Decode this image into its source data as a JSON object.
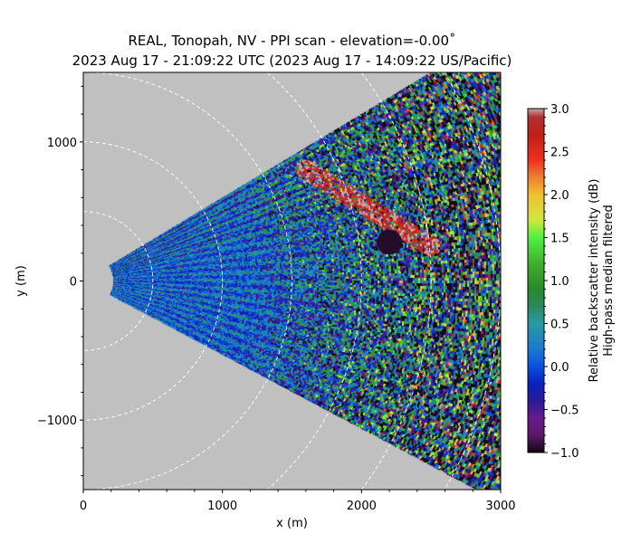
{
  "title": {
    "line1": "REAL, Tonopah, NV - PPI scan - elevation=-0.00˚",
    "line2": "2023 Aug 17 - 21:09:22 UTC (2023 Aug 17 - 14:09:22 US/Pacific)"
  },
  "chart_data": {
    "type": "heatmap",
    "subtype": "polar PPI sector scan",
    "xlabel": "x (m)",
    "ylabel": "y (m)",
    "xlim": [
      0,
      3000
    ],
    "ylim": [
      -1500,
      1500
    ],
    "xticks": [
      0,
      1000,
      2000,
      3000
    ],
    "xtick_labels": [
      "0",
      "1000",
      "2000",
      "3000"
    ],
    "yticks": [
      -1000,
      0,
      1000
    ],
    "ytick_labels": [
      "−1000",
      "0",
      "1000"
    ],
    "range_rings_m": [
      500,
      1000,
      1500,
      2000,
      2500,
      3000,
      3500
    ],
    "sector_azimuth_deg": [
      -28,
      31
    ],
    "min_range_m": 215,
    "background_color": "#c0c0c0",
    "colorbar": {
      "label_line1": "Relative backscatter intensity (dB)",
      "label_line2": "High-pass median filtered",
      "vmin": -1.0,
      "vmax": 3.0,
      "ticks": [
        -1.0,
        -0.5,
        0.0,
        0.5,
        1.0,
        1.5,
        2.0,
        2.5,
        3.0
      ],
      "tick_labels": [
        "−1.0",
        "−0.5",
        "0.0",
        "0.5",
        "1.0",
        "1.5",
        "2.0",
        "2.5",
        "3.0"
      ],
      "colormap_stops": [
        [
          -1.0,
          "#120812"
        ],
        [
          -0.8,
          "#5a1a6a"
        ],
        [
          -0.6,
          "#6a1a8a"
        ],
        [
          -0.4,
          "#2a1a9a"
        ],
        [
          -0.2,
          "#0a20c0"
        ],
        [
          0.0,
          "#0a50e0"
        ],
        [
          0.2,
          "#1a7ad0"
        ],
        [
          0.5,
          "#2a9aa0"
        ],
        [
          0.7,
          "#2a8a60"
        ],
        [
          0.9,
          "#2a8a2a"
        ],
        [
          1.2,
          "#40b030"
        ],
        [
          1.5,
          "#50f040"
        ],
        [
          1.7,
          "#d0e840"
        ],
        [
          2.0,
          "#f0c030"
        ],
        [
          2.2,
          "#f08030"
        ],
        [
          2.4,
          "#f03020"
        ],
        [
          2.7,
          "#c02018"
        ],
        [
          2.9,
          "#b03030"
        ],
        [
          3.0,
          "#c8a8a8"
        ]
      ]
    },
    "features": {
      "high_backscatter_plume": "elongated band of 2.5–3.0 dB from about (1600, 800) to (2500, 250) m",
      "low_backscatter_patch": "near (2200, 280) m"
    }
  }
}
